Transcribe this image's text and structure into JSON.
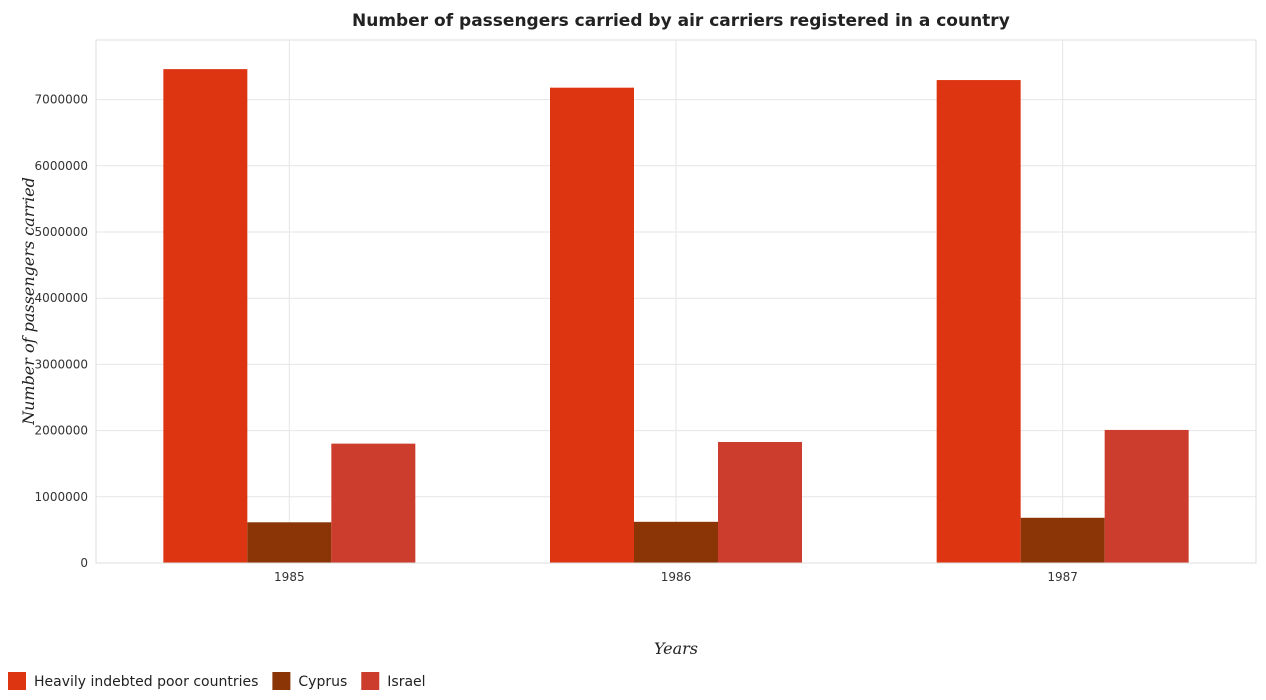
{
  "chart_data": {
    "type": "bar",
    "title": "Number of passengers carried by air carriers registered in a country",
    "xlabel": "Years",
    "ylabel": "Number of passengers carried",
    "categories": [
      "1985",
      "1986",
      "1987"
    ],
    "ylim": [
      0,
      7900000
    ],
    "yticks": [
      0,
      1000000,
      2000000,
      3000000,
      4000000,
      5000000,
      6000000,
      7000000
    ],
    "ytick_labels": [
      "0",
      "1000000",
      "2000000",
      "3000000",
      "4000000",
      "5000000",
      "6000000",
      "7000000"
    ],
    "grid": true,
    "legend_position": "bottom-left",
    "series": [
      {
        "name": "Heavily indebted poor countries",
        "color": "#dd3511",
        "values": [
          7460000,
          7180000,
          7295000
        ]
      },
      {
        "name": "Cyprus",
        "color": "#8b3406",
        "values": [
          615000,
          622000,
          683000
        ]
      },
      {
        "name": "Israel",
        "color": "#cd3d2d",
        "values": [
          1803000,
          1828000,
          2010000
        ]
      }
    ]
  }
}
